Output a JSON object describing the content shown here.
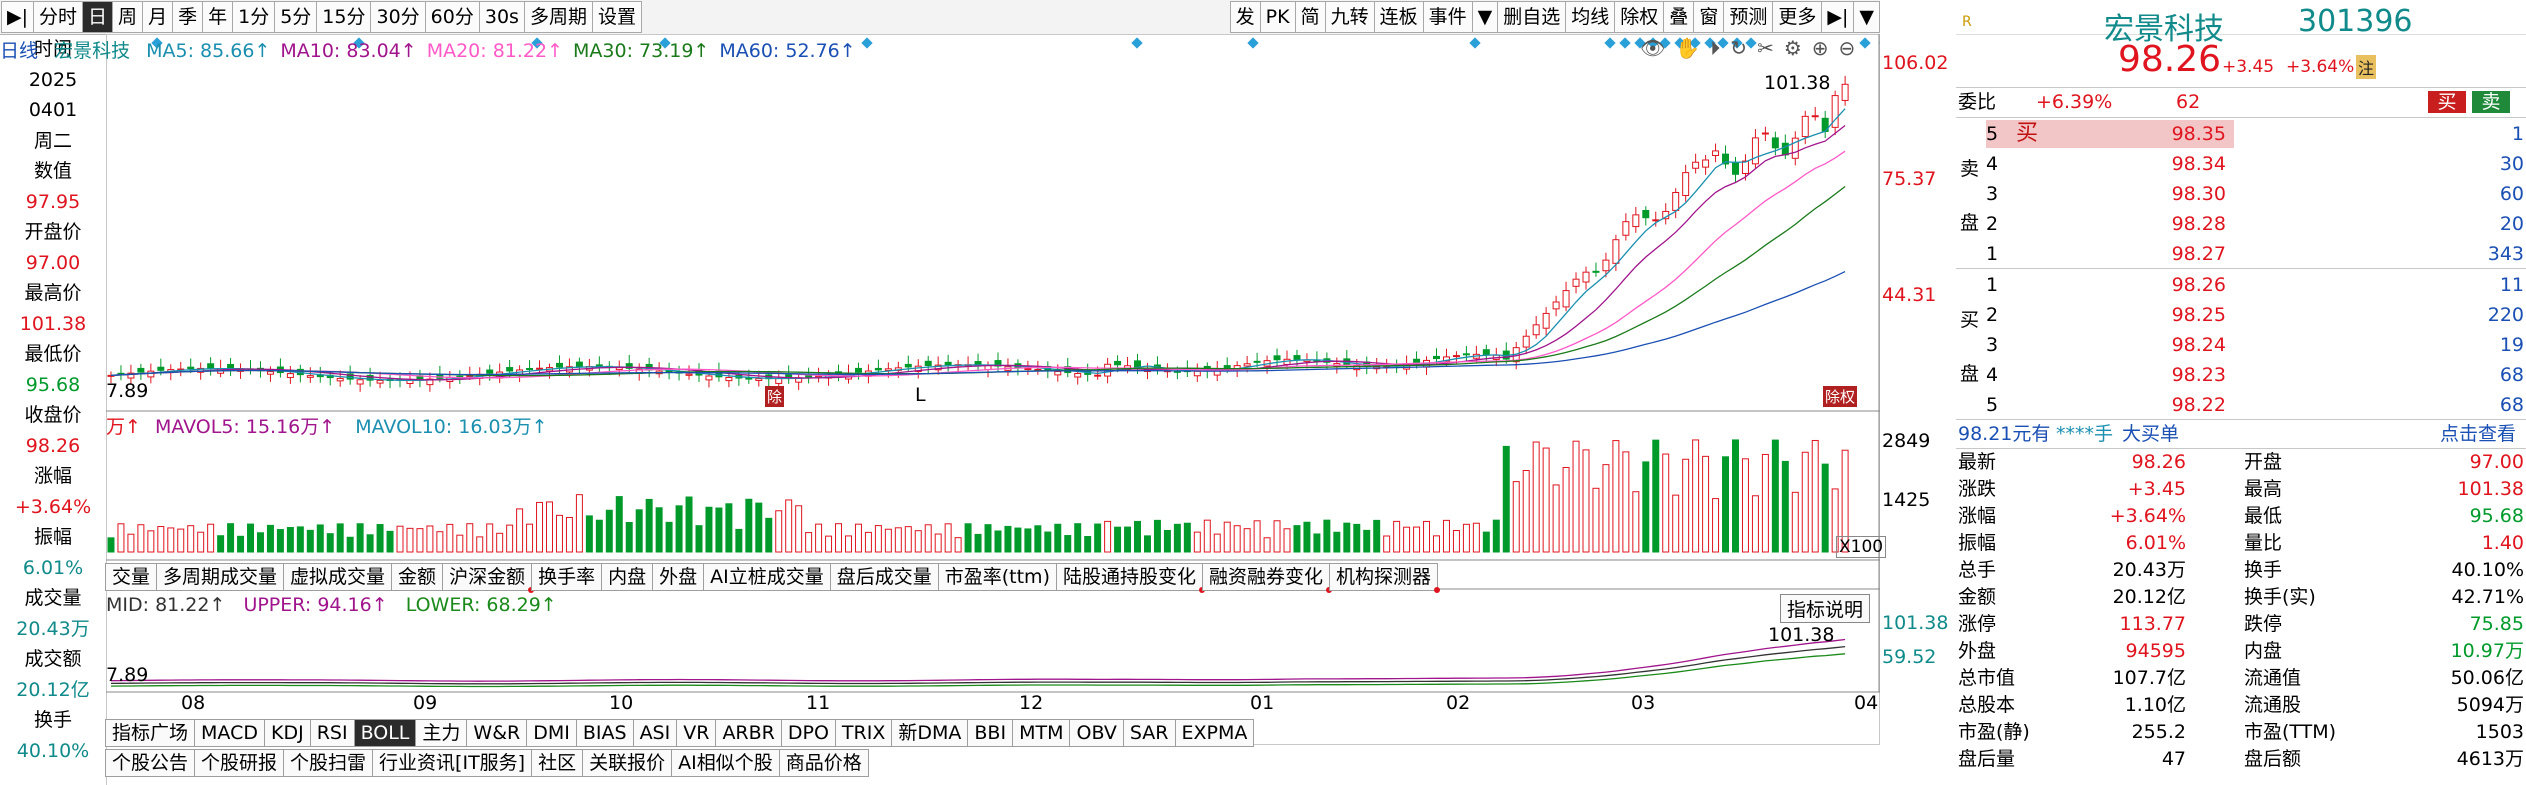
{
  "toolbar": {
    "left": [
      "分时",
      "日",
      "周",
      "月",
      "季",
      "年",
      "1分",
      "5分",
      "15分",
      "30分",
      "60分",
      "30s",
      "多周期",
      "设置"
    ],
    "active": "日",
    "right": [
      "发",
      "PK",
      "简",
      "九转",
      "连板",
      "事件",
      "▼",
      "删自选",
      "均线",
      "除权",
      "叠",
      "窗",
      "预测",
      "更多"
    ]
  },
  "left_panel": {
    "items": [
      {
        "label": "时间",
        "value": "2025",
        "value2": "0401",
        "value3": "周二"
      },
      {
        "label": "数值",
        "value": "97.95"
      },
      {
        "label": "开盘价",
        "value": "97.00"
      },
      {
        "label": "最高价",
        "value": "101.38"
      },
      {
        "label": "最低价",
        "value": "95.68"
      },
      {
        "label": "收盘价",
        "value": "98.26"
      },
      {
        "label": "涨幅",
        "value": "+3.64%"
      },
      {
        "label": "振幅",
        "value": "6.01%"
      },
      {
        "label": "成交量",
        "value": "20.43万"
      },
      {
        "label": "成交额",
        "value": "20.12亿"
      },
      {
        "label": "换手",
        "value": "40.10%"
      }
    ]
  },
  "main_chart": {
    "legend": {
      "period": "日线",
      "name": "宏景科技",
      "ma": [
        {
          "label": "MA5: 85.66↑",
          "color": "#1a8fb0"
        },
        {
          "label": "MA10: 83.04↑",
          "color": "#a0148c"
        },
        {
          "label": "MA20: 81.22↑",
          "color": "#ff5ac8"
        },
        {
          "label": "MA30: 73.19↑",
          "color": "#1a7a1a"
        },
        {
          "label": "MA60: 52.76↑",
          "color": "#1a4fb4"
        }
      ]
    },
    "price_axis": [
      "106.02",
      "75.37",
      "44.31"
    ],
    "high_label": "101.38",
    "low_label": "7.89",
    "markers": [
      "L"
    ],
    "marker_badge_1": "除",
    "marker_badge_2": "除权"
  },
  "volume_chart": {
    "legend_vol5": "MAVOL5: 15.16万↑",
    "legend_vol10": "MAVOL10: 16.03万↑",
    "legend_prefix": "万↑",
    "axis": [
      "2849",
      "1425"
    ],
    "unit": "X100",
    "tabs": [
      "交量",
      "多周期成交量",
      "虚拟成交量",
      "金额",
      "沪深金额",
      "换手率",
      "内盘",
      "外盘",
      "AI立桩成交量",
      "盘后成交量",
      "市盈率(ttm)",
      "陆股通持股变化",
      "融资融券变化",
      "机构探测器"
    ],
    "dot_tabs": [
      4,
      11,
      12,
      13
    ]
  },
  "boll_chart": {
    "mid": "MID: 81.22↑",
    "upper": "UPPER: 94.16↑",
    "lower": "LOWER: 68.29↑",
    "explain": "指标说明",
    "axis": [
      "101.38",
      "59.52"
    ],
    "high_label": "101.38",
    "low_label": "7.89"
  },
  "date_axis": [
    "08",
    "09",
    "10",
    "11",
    "12",
    "01",
    "02",
    "03",
    "04"
  ],
  "indicator_tabs": [
    "指标广场",
    "MACD",
    "KDJ",
    "RSI",
    "BOLL",
    "主力",
    "W&R",
    "DMI",
    "BIAS",
    "ASI",
    "VR",
    "ARBR",
    "DPO",
    "TRIX",
    "新DMA",
    "BBI",
    "MTM",
    "OBV",
    "SAR",
    "EXPMA"
  ],
  "active_indicator": "BOLL",
  "news_tabs": [
    "个股公告",
    "个股研报",
    "个股扫雷",
    "行业资讯[IT服务]",
    "社区",
    "关联报价",
    "AI相似个股",
    "商品价格"
  ],
  "quote": {
    "name": "宏景科技",
    "code": "301396",
    "price": "98.26",
    "change": "+3.45",
    "change_pct": "+3.64%",
    "badge": "注",
    "weibi_label": "委比",
    "weibi_value": "+6.39%",
    "weicha": "62",
    "buy_btn": "买",
    "sell_btn": "卖",
    "sell_side_label": [
      "卖",
      "盘"
    ],
    "buy_side_label": [
      "买",
      "盘"
    ],
    "asks": [
      {
        "level": "5",
        "tag": "买",
        "price": "98.35",
        "vol": "1"
      },
      {
        "level": "4",
        "price": "98.34",
        "vol": "30"
      },
      {
        "level": "3",
        "price": "98.30",
        "vol": "60"
      },
      {
        "level": "2",
        "price": "98.28",
        "vol": "20"
      },
      {
        "level": "1",
        "price": "98.27",
        "vol": "343"
      }
    ],
    "bids": [
      {
        "level": "1",
        "price": "98.26",
        "vol": "11"
      },
      {
        "level": "2",
        "price": "98.25",
        "vol": "220"
      },
      {
        "level": "3",
        "price": "98.24",
        "vol": "19"
      },
      {
        "level": "4",
        "price": "98.23",
        "vol": "68"
      },
      {
        "level": "5",
        "price": "98.22",
        "vol": "68"
      }
    ],
    "big_order_prefix": "98.21元有",
    "big_order_stars": "****手",
    "big_order_label": "大买单",
    "look": "点击查看",
    "stats": [
      [
        "最新",
        "98.26",
        "开盘",
        "97.00"
      ],
      [
        "涨跌",
        "+3.45",
        "最高",
        "101.38"
      ],
      [
        "涨幅",
        "+3.64%",
        "最低",
        "95.68"
      ],
      [
        "振幅",
        "6.01%",
        "量比",
        "1.40"
      ],
      [
        "总手",
        "20.43万",
        "换手",
        "40.10%"
      ],
      [
        "金额",
        "20.12亿",
        "换手(实)",
        "42.71%"
      ],
      [
        "涨停",
        "113.77",
        "跌停",
        "75.85"
      ],
      [
        "外盘",
        "94595",
        "内盘",
        "10.97万"
      ],
      [
        "总市值",
        "107.7亿",
        "流通值",
        "50.06亿"
      ],
      [
        "总股本",
        "1.10亿",
        "流通股",
        "5094万"
      ],
      [
        "市盈(静)",
        "255.2",
        "市盈(TTM)",
        "1503"
      ],
      [
        "盘后量",
        "47",
        "盘后额",
        "4613万"
      ]
    ]
  },
  "colors": {
    "up": "#e0141e",
    "down": "#009a2b",
    "candle_up": "#e0141e",
    "candle_down": "#009a2b",
    "diamond": "#2aa0d8"
  }
}
